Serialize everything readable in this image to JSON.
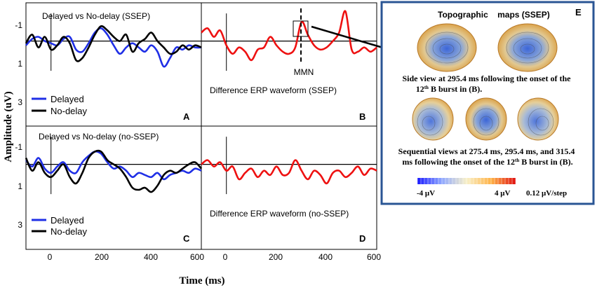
{
  "figure": {
    "y_axis_label": "Amplitude  (uV)",
    "x_axis_label": "Time (ms)",
    "x_ticks": [
      "0",
      "200",
      "400",
      "600"
    ],
    "y_ticks": [
      "-1",
      "1",
      "3"
    ]
  },
  "colors": {
    "delayed": "#1f2fe6",
    "no_delay": "#000000",
    "difference": "#ee1111",
    "panel_e_border": "#2a5594",
    "head_warm": "#e6a94a",
    "head_cool": "#4a7fd6"
  },
  "chart_data": [
    {
      "panel": "A",
      "type": "line",
      "title": "Delayed vs No-delay (SSEP)",
      "xlim": [
        -100,
        600
      ],
      "ylim": [
        -1.8,
        4
      ],
      "y_inverted": true,
      "legend": [
        "Delayed",
        "No-delay"
      ],
      "series": [
        {
          "name": "Delayed",
          "color": "#1f2fe6",
          "x": [
            -100,
            -75,
            -50,
            -25,
            0,
            25,
            50,
            75,
            100,
            125,
            150,
            175,
            200,
            225,
            250,
            275,
            300,
            325,
            350,
            375,
            400,
            425,
            450,
            475,
            500,
            525,
            550,
            575,
            600
          ],
          "y": [
            0.2,
            -0.1,
            -0.2,
            0,
            0.1,
            0.2,
            -0.1,
            -0.2,
            0.4,
            0.5,
            0.1,
            -0.4,
            -0.6,
            -0.3,
            0.2,
            0.6,
            0.3,
            0.1,
            0.3,
            0.5,
            0.2,
            0.5,
            1.2,
            0.8,
            0.3,
            0.4,
            0.2,
            0.3,
            0.3
          ]
        },
        {
          "name": "No-delay",
          "color": "#000000",
          "x": [
            -100,
            -75,
            -50,
            -25,
            0,
            25,
            50,
            75,
            100,
            125,
            150,
            175,
            200,
            225,
            250,
            275,
            300,
            325,
            350,
            375,
            400,
            425,
            450,
            475,
            500,
            525,
            550,
            575,
            600
          ],
          "y": [
            0.1,
            -0.3,
            0.3,
            -0.2,
            0.4,
            0.2,
            -0.2,
            0.1,
            0.9,
            0.8,
            0.3,
            -0.3,
            -0.7,
            -0.5,
            -0.2,
            0.0,
            -0.3,
            0.5,
            0.1,
            -0.1,
            -0.4,
            0.0,
            0.3,
            0.6,
            0.5,
            0.2,
            0.4,
            0.2,
            0.3
          ]
        }
      ]
    },
    {
      "panel": "B",
      "type": "line",
      "title": "Difference ERP waveform (SSEP)",
      "annotation": "MMN",
      "xlim": [
        -100,
        600
      ],
      "ylim": [
        -1.8,
        4
      ],
      "y_inverted": true,
      "series": [
        {
          "name": "Difference",
          "color": "#ee1111",
          "x": [
            -100,
            -75,
            -50,
            -25,
            0,
            25,
            50,
            75,
            100,
            125,
            150,
            175,
            200,
            225,
            250,
            275,
            300,
            325,
            350,
            375,
            400,
            425,
            450,
            475,
            500,
            525,
            550,
            575,
            600
          ],
          "y": [
            -0.4,
            -0.6,
            -0.2,
            -0.5,
            0.2,
            0.6,
            0.3,
            0.5,
            0.9,
            0.4,
            0.3,
            -0.2,
            0.2,
            0.5,
            0.6,
            0.3,
            -0.9,
            -0.3,
            0.2,
            0.4,
            0.3,
            0.0,
            -0.4,
            -1.4,
            0.4,
            0.5,
            0.3,
            0.5,
            0.3
          ]
        }
      ]
    },
    {
      "panel": "C",
      "type": "line",
      "title": "Delayed vs No-delay (no-SSEP)",
      "xlim": [
        -100,
        600
      ],
      "ylim": [
        -1.8,
        4
      ],
      "y_inverted": true,
      "legend": [
        "Delayed",
        "No-delay"
      ],
      "series": [
        {
          "name": "Delayed",
          "color": "#1f2fe6",
          "x": [
            -100,
            -75,
            -50,
            -25,
            0,
            25,
            50,
            75,
            100,
            125,
            150,
            175,
            200,
            225,
            250,
            275,
            300,
            325,
            350,
            375,
            400,
            425,
            450,
            475,
            500,
            525,
            550,
            575,
            600
          ],
          "y": [
            -0.2,
            0.1,
            -0.3,
            0.2,
            0.4,
            0.1,
            -0.1,
            0.3,
            0.4,
            -0.1,
            -0.4,
            -0.6,
            -0.5,
            -0.1,
            0.2,
            0.1,
            0.3,
            0.6,
            0.4,
            0.5,
            0.6,
            0.4,
            0.7,
            0.5,
            0.4,
            0.3,
            0.4,
            0.2,
            0.3
          ]
        },
        {
          "name": "No-delay",
          "color": "#000000",
          "x": [
            -100,
            -75,
            -50,
            -25,
            0,
            25,
            50,
            75,
            100,
            125,
            150,
            175,
            200,
            225,
            250,
            275,
            300,
            325,
            350,
            375,
            400,
            425,
            450,
            475,
            500,
            525,
            550,
            575,
            600
          ],
          "y": [
            -0.3,
            0.3,
            -0.1,
            0.4,
            0.6,
            0.3,
            0.0,
            0.6,
            0.9,
            0.4,
            -0.3,
            -0.6,
            -0.6,
            -0.2,
            0.0,
            0.2,
            0.6,
            1.1,
            1.2,
            1.1,
            1.3,
            1.0,
            0.5,
            0.3,
            0.4,
            0.2,
            0.0,
            -0.1,
            0.2
          ]
        }
      ]
    },
    {
      "panel": "D",
      "type": "line",
      "title": "Difference ERP waveform (no-SSEP)",
      "xlim": [
        -100,
        600
      ],
      "ylim": [
        -1.8,
        4
      ],
      "y_inverted": true,
      "series": [
        {
          "name": "Difference",
          "color": "#ee1111",
          "x": [
            -100,
            -75,
            -50,
            -25,
            0,
            25,
            50,
            75,
            100,
            125,
            150,
            175,
            200,
            225,
            250,
            275,
            300,
            325,
            350,
            375,
            400,
            425,
            450,
            475,
            500,
            525,
            550,
            575,
            600
          ],
          "y": [
            0.0,
            -0.2,
            0.1,
            -0.1,
            0.3,
            0.1,
            0.7,
            0.4,
            0.2,
            0.6,
            0.3,
            0.5,
            0.1,
            0.5,
            0.4,
            -0.2,
            0.3,
            0.7,
            0.3,
            0.5,
            0.9,
            0.4,
            0.3,
            0.6,
            0.4,
            0.1,
            0.5,
            0.2,
            0.3
          ]
        }
      ]
    }
  ],
  "panel_e": {
    "letter": "E",
    "title": "Topographic    maps (SSEP)",
    "caption1": "Side view at 295.4 ms following the onset of the 12th B burst in (B).",
    "caption2": "Sequential views at 275.4 ms, 295.4 ms, and 315.4 ms following the onset of the 12th B burst in (B).",
    "scale_min": "-4 μV",
    "scale_max": "4 μV",
    "scale_step": "0.12 μV/step"
  }
}
